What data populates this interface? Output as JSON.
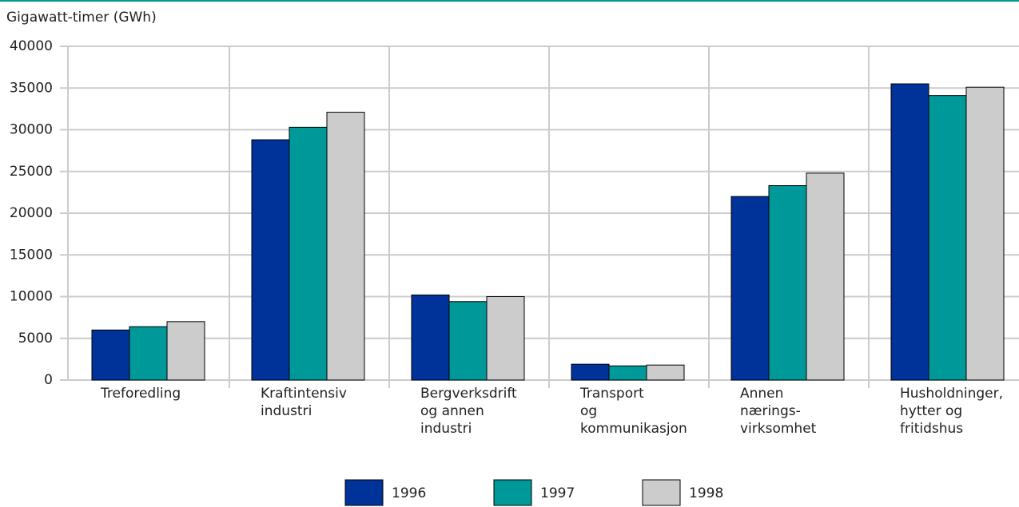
{
  "chart_data": {
    "type": "bar",
    "y_label": "Gigawatt-timer (GWh)",
    "categories": [
      "Treforedling",
      "Kraftintensiv\nindustri",
      "Bergverksdrift\nog annen\nindustri",
      "Transport\nog\nkommunikasjon",
      "Annen\nnærings-\nvirksomhet",
      "Husholdninger,\nhytter og\nfritidshus"
    ],
    "series": [
      {
        "name": "1996",
        "color": "#003399",
        "values": [
          6000,
          28800,
          10200,
          1900,
          22000,
          35500
        ]
      },
      {
        "name": "1997",
        "color": "#009999",
        "values": [
          6400,
          30300,
          9400,
          1700,
          23300,
          34100
        ]
      },
      {
        "name": "1998",
        "color": "#cccccc",
        "values": [
          7000,
          32100,
          10000,
          1800,
          24800,
          35100
        ]
      }
    ],
    "ylim": [
      0,
      40000
    ],
    "yticks": [
      0,
      5000,
      10000,
      15000,
      20000,
      25000,
      30000,
      35000,
      40000
    ],
    "grid": true,
    "legend": "bottom"
  }
}
